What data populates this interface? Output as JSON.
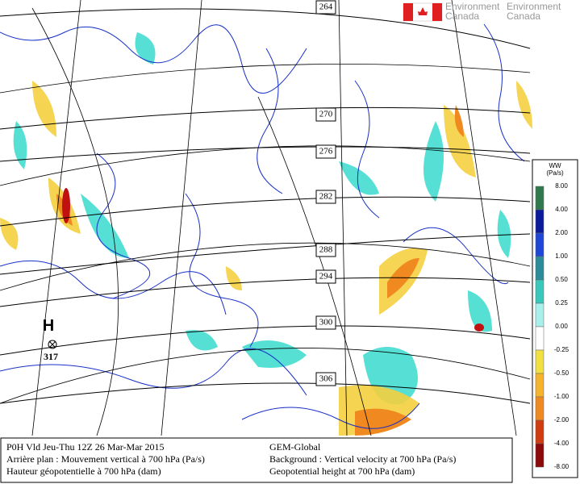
{
  "logo": {
    "line1": [
      "Environment",
      "Environment"
    ],
    "line2": [
      "Canada",
      "Canada"
    ]
  },
  "contours": [
    "264",
    "270",
    "276",
    "282",
    "288",
    "294",
    "300",
    "306"
  ],
  "high": {
    "letter": "H",
    "value": "317"
  },
  "legend": {
    "title": [
      "WW",
      "(Pa/s)"
    ],
    "labels": [
      "8.00",
      "4.00",
      "2.00",
      "1.00",
      "0.50",
      "0.25",
      "0.00",
      "-0.25",
      "-0.50",
      "-1.00",
      "-2.00",
      "-4.00",
      "-8.00"
    ],
    "colors": [
      "#2f7a4c",
      "#0c1a9c",
      "#1f46d6",
      "#2c8c9c",
      "#38c8bc",
      "#a8f0ec",
      "#ffffff",
      "#f2e040",
      "#f6b42c",
      "#f08a20",
      "#d03c10",
      "#8c0a0a"
    ]
  },
  "footer": {
    "left": [
      "P0H Vld Jeu-Thu 12Z 26 Mar-Mar 2015",
      "Arrière plan : Mouvement vertical à 700 hPa (Pa/s)",
      "Hauteur géopotentielle à 700 hPa (dam)"
    ],
    "right": [
      "GEM-Global",
      "Background : Vertical velocity at 700 hPa (Pa/s)",
      "Geopotential height at 700 hPa (dam)"
    ]
  }
}
